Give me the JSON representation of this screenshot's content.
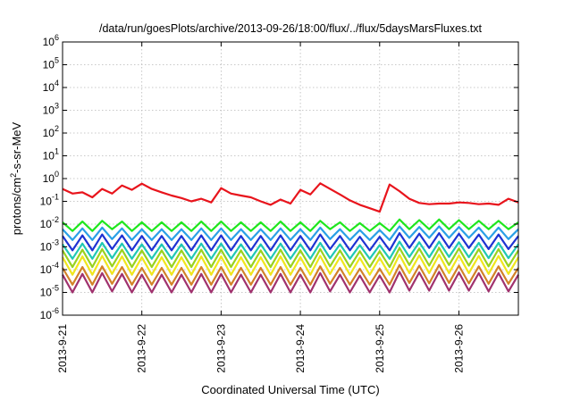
{
  "chart_data": {
    "type": "line",
    "title": "/data/run/goesPlots/archive/2013-09-26/18:00/flux/../flux/5daysMarsFluxes.txt",
    "xlabel": "Coordinated Universal Time (UTC)",
    "ylabel_base": "protons/cm",
    "ylabel_sup": "2",
    "ylabel_rest": "-s-sr-MeV",
    "yscale": "log",
    "ylim": [
      1e-06,
      1000000
    ],
    "xlim": [
      "2013-09-21",
      "2013-09-26 18:00"
    ],
    "grid": true,
    "x_ticks": [
      "2013-9-21",
      "2013-9-22",
      "2013-9-23",
      "2013-9-24",
      "2013-9-25",
      "2013-9-26"
    ],
    "y_ticks": [
      {
        "value": 1e-06,
        "base": "10",
        "exp": "-6"
      },
      {
        "value": 1e-05,
        "base": "10",
        "exp": "-5"
      },
      {
        "value": 0.0001,
        "base": "10",
        "exp": "-4"
      },
      {
        "value": 0.001,
        "base": "10",
        "exp": "-3"
      },
      {
        "value": 0.01,
        "base": "10",
        "exp": "-2"
      },
      {
        "value": 0.1,
        "base": "10",
        "exp": "-1"
      },
      {
        "value": 1,
        "base": "10",
        "exp": "0"
      },
      {
        "value": 10,
        "base": "10",
        "exp": "1"
      },
      {
        "value": 100,
        "base": "10",
        "exp": "2"
      },
      {
        "value": 1000,
        "base": "10",
        "exp": "3"
      },
      {
        "value": 10000,
        "base": "10",
        "exp": "4"
      },
      {
        "value": 100000,
        "base": "10",
        "exp": "5"
      },
      {
        "value": 1000000,
        "base": "10",
        "exp": "6"
      }
    ],
    "x": [
      "2013-09-21 00:00",
      "2013-09-21 03:00",
      "2013-09-21 06:00",
      "2013-09-21 09:00",
      "2013-09-21 12:00",
      "2013-09-21 15:00",
      "2013-09-21 18:00",
      "2013-09-21 21:00",
      "2013-09-22 00:00",
      "2013-09-22 03:00",
      "2013-09-22 06:00",
      "2013-09-22 09:00",
      "2013-09-22 12:00",
      "2013-09-22 15:00",
      "2013-09-22 18:00",
      "2013-09-22 21:00",
      "2013-09-23 00:00",
      "2013-09-23 03:00",
      "2013-09-23 06:00",
      "2013-09-23 09:00",
      "2013-09-23 12:00",
      "2013-09-23 15:00",
      "2013-09-23 18:00",
      "2013-09-23 21:00",
      "2013-09-24 00:00",
      "2013-09-24 03:00",
      "2013-09-24 06:00",
      "2013-09-24 09:00",
      "2013-09-24 12:00",
      "2013-09-24 15:00",
      "2013-09-24 18:00",
      "2013-09-24 21:00",
      "2013-09-25 00:00",
      "2013-09-25 03:00",
      "2013-09-25 06:00",
      "2013-09-25 09:00",
      "2013-09-25 12:00",
      "2013-09-25 15:00",
      "2013-09-25 18:00",
      "2013-09-25 21:00",
      "2013-09-26 00:00",
      "2013-09-26 03:00",
      "2013-09-26 06:00",
      "2013-09-26 09:00",
      "2013-09-26 12:00",
      "2013-09-26 15:00",
      "2013-09-26 18:00"
    ],
    "series": [
      {
        "color": "#e8141c",
        "values": [
          0.35,
          0.22,
          0.25,
          0.15,
          0.35,
          0.22,
          0.5,
          0.32,
          0.6,
          0.35,
          0.25,
          0.18,
          0.14,
          0.1,
          0.13,
          0.09,
          0.38,
          0.22,
          0.18,
          0.15,
          0.1,
          0.07,
          0.12,
          0.08,
          0.32,
          0.2,
          0.62,
          0.35,
          0.2,
          0.11,
          0.07,
          0.05,
          0.035,
          0.55,
          0.28,
          0.13,
          0.085,
          0.075,
          0.08,
          0.08,
          0.09,
          0.085,
          0.075,
          0.08,
          0.07,
          0.13,
          0.09
        ]
      },
      {
        "color": "#1ee61e",
        "values": [
          0.012,
          0.005,
          0.013,
          0.005,
          0.014,
          0.006,
          0.013,
          0.005,
          0.012,
          0.005,
          0.012,
          0.005,
          0.012,
          0.005,
          0.013,
          0.005,
          0.013,
          0.005,
          0.012,
          0.005,
          0.012,
          0.005,
          0.013,
          0.005,
          0.012,
          0.005,
          0.014,
          0.006,
          0.012,
          0.005,
          0.011,
          0.005,
          0.011,
          0.005,
          0.016,
          0.006,
          0.015,
          0.006,
          0.016,
          0.006,
          0.015,
          0.006,
          0.014,
          0.006,
          0.014,
          0.006,
          0.012
        ]
      },
      {
        "color": "#2aa0e6",
        "values": [
          0.006,
          0.002,
          0.0065,
          0.002,
          0.007,
          0.0022,
          0.0065,
          0.002,
          0.006,
          0.002,
          0.006,
          0.002,
          0.006,
          0.002,
          0.0065,
          0.002,
          0.0065,
          0.002,
          0.006,
          0.002,
          0.006,
          0.002,
          0.0065,
          0.002,
          0.006,
          0.002,
          0.007,
          0.0022,
          0.006,
          0.002,
          0.0055,
          0.002,
          0.0055,
          0.002,
          0.008,
          0.0025,
          0.0075,
          0.0025,
          0.008,
          0.0025,
          0.0075,
          0.0025,
          0.007,
          0.0022,
          0.007,
          0.0022,
          0.006
        ]
      },
      {
        "color": "#1e32d2",
        "values": [
          0.003,
          0.0007,
          0.0032,
          0.0007,
          0.0035,
          0.0008,
          0.0032,
          0.0007,
          0.003,
          0.0007,
          0.003,
          0.0007,
          0.003,
          0.0007,
          0.0032,
          0.0007,
          0.0032,
          0.0007,
          0.003,
          0.0007,
          0.003,
          0.0007,
          0.0032,
          0.0007,
          0.003,
          0.0007,
          0.0035,
          0.0008,
          0.003,
          0.0007,
          0.0028,
          0.0007,
          0.0028,
          0.0007,
          0.004,
          0.0009,
          0.0038,
          0.0009,
          0.004,
          0.0009,
          0.0038,
          0.0009,
          0.0035,
          0.0008,
          0.0035,
          0.0008,
          0.003
        ]
      },
      {
        "color": "#20c8b4",
        "values": [
          0.0013,
          0.0003,
          0.0014,
          0.0003,
          0.0015,
          0.00032,
          0.0014,
          0.0003,
          0.0013,
          0.0003,
          0.0013,
          0.0003,
          0.0013,
          0.0003,
          0.0014,
          0.0003,
          0.0014,
          0.0003,
          0.0013,
          0.0003,
          0.0013,
          0.0003,
          0.0014,
          0.0003,
          0.0013,
          0.0003,
          0.0015,
          0.00032,
          0.0013,
          0.0003,
          0.0012,
          0.0003,
          0.0012,
          0.0003,
          0.0017,
          0.00036,
          0.0016,
          0.00035,
          0.0017,
          0.00036,
          0.0016,
          0.00035,
          0.0015,
          0.00032,
          0.0015,
          0.00032,
          0.0013
        ]
      },
      {
        "color": "#9ad21e",
        "values": [
          0.0007,
          0.00013,
          0.00075,
          0.00013,
          0.0008,
          0.00014,
          0.00075,
          0.00013,
          0.0007,
          0.00013,
          0.0007,
          0.00013,
          0.0007,
          0.00013,
          0.00075,
          0.00013,
          0.00075,
          0.00013,
          0.0007,
          0.00013,
          0.0007,
          0.00013,
          0.00075,
          0.00013,
          0.0007,
          0.00013,
          0.0008,
          0.00014,
          0.0007,
          0.00013,
          0.00065,
          0.00013,
          0.00065,
          0.00013,
          0.0009,
          0.00016,
          0.00085,
          0.00015,
          0.0009,
          0.00016,
          0.00085,
          0.00015,
          0.0008,
          0.00014,
          0.0008,
          0.00014,
          0.0007
        ]
      },
      {
        "color": "#f0e61e",
        "values": [
          0.00035,
          6e-05,
          0.00038,
          6e-05,
          0.0004,
          6.5e-05,
          0.00038,
          6e-05,
          0.00035,
          6e-05,
          0.00035,
          6e-05,
          0.00035,
          6e-05,
          0.00038,
          6e-05,
          0.00038,
          6e-05,
          0.00035,
          6e-05,
          0.00035,
          6e-05,
          0.00038,
          6e-05,
          0.00035,
          6e-05,
          0.0004,
          6.5e-05,
          0.00035,
          6e-05,
          0.00033,
          6e-05,
          0.00033,
          6e-05,
          0.00045,
          7e-05,
          0.00042,
          7e-05,
          0.00045,
          7e-05,
          0.00042,
          7e-05,
          0.0004,
          6.5e-05,
          0.0004,
          6.5e-05,
          0.00035
        ]
      },
      {
        "color": "#d28228",
        "values": [
          0.00012,
          2.2e-05,
          0.00013,
          2.2e-05,
          0.00014,
          2.4e-05,
          0.00013,
          2.2e-05,
          0.00012,
          2.2e-05,
          0.00012,
          2.2e-05,
          0.00012,
          2.2e-05,
          0.00013,
          2.2e-05,
          0.00013,
          2.2e-05,
          0.00012,
          2.2e-05,
          0.00012,
          2.2e-05,
          0.00013,
          2.2e-05,
          0.00012,
          2.2e-05,
          0.00014,
          2.4e-05,
          0.00012,
          2.2e-05,
          0.00011,
          2.2e-05,
          0.00011,
          2.2e-05,
          0.00016,
          2.6e-05,
          0.00015,
          2.5e-05,
          0.00016,
          2.6e-05,
          0.00015,
          2.5e-05,
          0.00014,
          2.4e-05,
          0.00014,
          2.4e-05,
          0.00012
        ]
      },
      {
        "color": "#a0326e",
        "values": [
          6e-05,
          1e-05,
          6.5e-05,
          1e-05,
          7e-05,
          1.1e-05,
          6.5e-05,
          1e-05,
          6e-05,
          1e-05,
          6e-05,
          1e-05,
          6e-05,
          1e-05,
          6.5e-05,
          1e-05,
          6.5e-05,
          1e-05,
          6e-05,
          1e-05,
          6e-05,
          1e-05,
          6.5e-05,
          1e-05,
          6e-05,
          1e-05,
          7e-05,
          1.1e-05,
          6e-05,
          1e-05,
          5.5e-05,
          1e-05,
          5.5e-05,
          1e-05,
          8e-05,
          1.2e-05,
          7.5e-05,
          1.2e-05,
          8e-05,
          1.2e-05,
          7.5e-05,
          1.2e-05,
          7e-05,
          1.1e-05,
          7e-05,
          1.1e-05,
          6e-05
        ]
      }
    ]
  }
}
